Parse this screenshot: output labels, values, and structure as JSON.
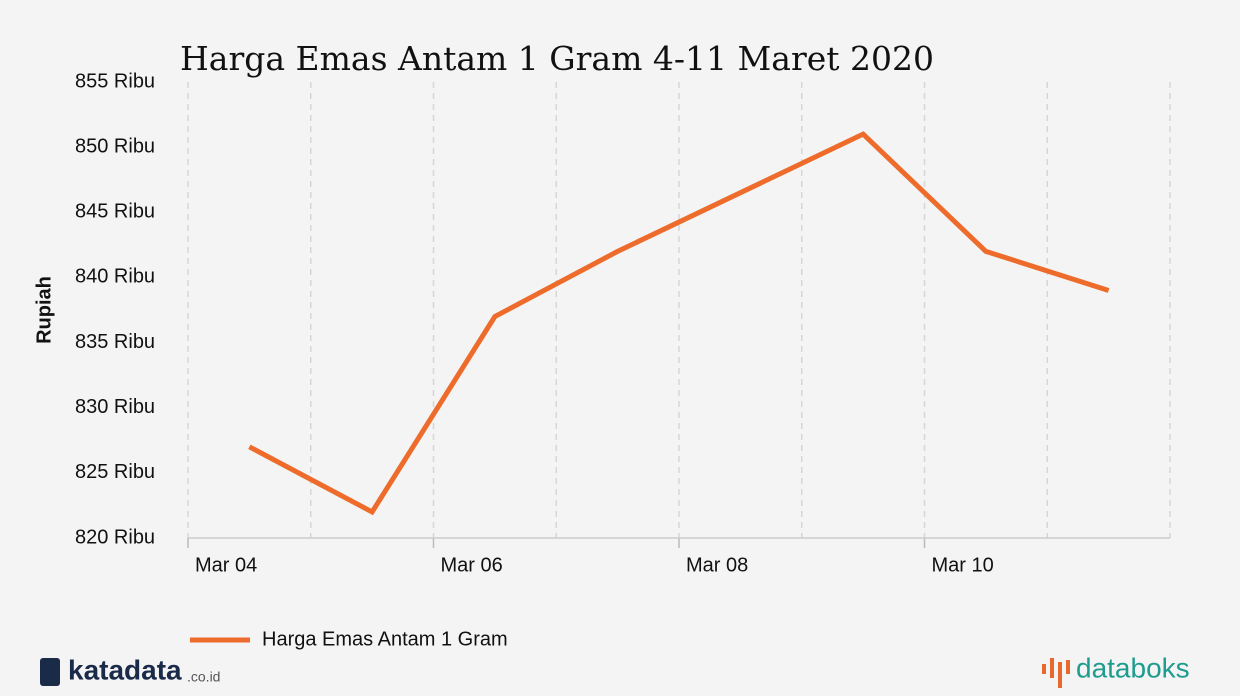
{
  "chart_data": {
    "type": "line",
    "title": "Harga Emas Antam 1 Gram 4-11 Maret 2020",
    "y_label": "Rupiah",
    "x": [
      4.5,
      5.5,
      6.5,
      7.5,
      9.5,
      10.5,
      11.5
    ],
    "series": [
      {
        "name": "Harga Emas Antam 1 Gram",
        "color": "#ee6c2b",
        "values": [
          827,
          822,
          837,
          842,
          851,
          842,
          839
        ]
      }
    ],
    "xlim": [
      4,
      12
    ],
    "xticks": [
      {
        "value": 4,
        "label": "Mar 04"
      },
      {
        "value": 6,
        "label": "Mar 06"
      },
      {
        "value": 8,
        "label": "Mar 08"
      },
      {
        "value": 10,
        "label": "Mar 10"
      }
    ],
    "x_minor_ticks": [
      5,
      7,
      9,
      11,
      12
    ],
    "ylim": [
      820,
      855
    ],
    "yticks": [
      {
        "value": 820,
        "label": "820 Ribu"
      },
      {
        "value": 825,
        "label": "825 Ribu"
      },
      {
        "value": 830,
        "label": "830 Ribu"
      },
      {
        "value": 835,
        "label": "835 Ribu"
      },
      {
        "value": 840,
        "label": "840 Ribu"
      },
      {
        "value": 845,
        "label": "845 Ribu"
      },
      {
        "value": 850,
        "label": "850 Ribu"
      },
      {
        "value": 855,
        "label": "855 Ribu"
      }
    ],
    "grid": true,
    "legend": "bottom-left"
  },
  "branding": {
    "left": "katadata",
    "left_suffix": ".co.id",
    "right": "databoks"
  }
}
